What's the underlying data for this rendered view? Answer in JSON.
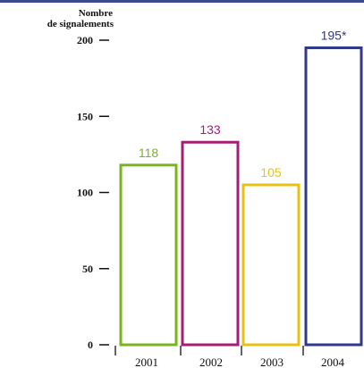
{
  "chart_data": {
    "type": "bar",
    "ylabel": "Nombre\nde signalements",
    "categories": [
      "2001",
      "2002",
      "2003",
      "2004"
    ],
    "values": [
      118,
      133,
      105,
      195
    ],
    "data_labels": [
      "118",
      "133",
      "105",
      "195*"
    ],
    "colors": [
      "#7ab51d",
      "#a61e73",
      "#e8c20e",
      "#2e3a87"
    ],
    "yticks": [
      0,
      50,
      100,
      150,
      200
    ],
    "ylim": [
      0,
      200
    ],
    "grid": false,
    "legend": "none"
  }
}
